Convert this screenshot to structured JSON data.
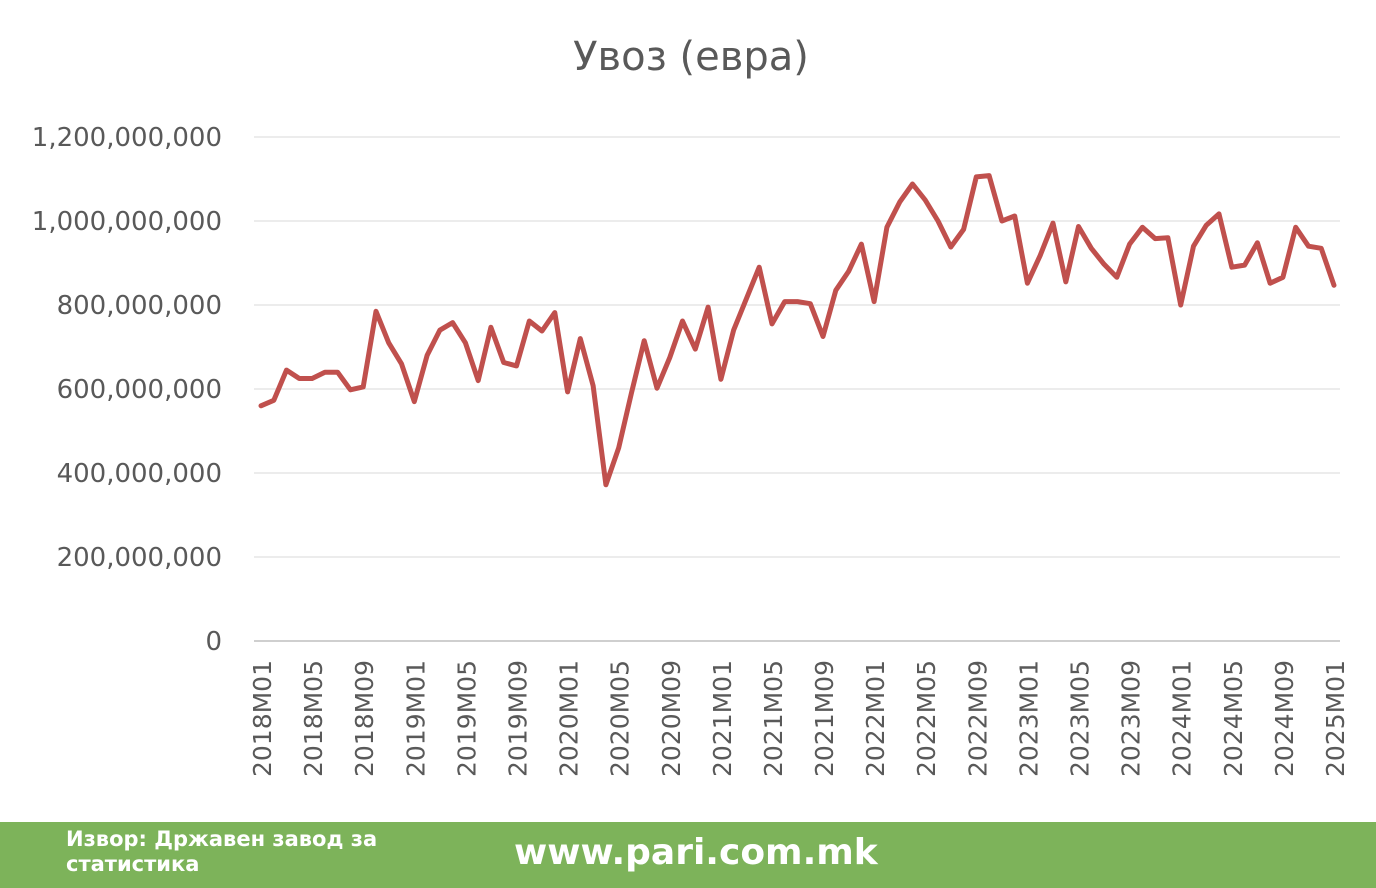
{
  "chart_data": {
    "type": "line",
    "title": "Увоз (евра)",
    "xlabel": "",
    "ylabel": "",
    "ylim": [
      0,
      1200000000
    ],
    "yticks": [
      0,
      200000000,
      400000000,
      600000000,
      800000000,
      1000000000,
      1200000000
    ],
    "ytick_labels": [
      "0",
      "200,000,000",
      "400,000,000",
      "600,000,000",
      "800,000,000",
      "1,000,000,000",
      "1,200,000,000"
    ],
    "xtick_labels": [
      "2018M01",
      "2018M05",
      "2018M09",
      "2019M01",
      "2019M05",
      "2019M09",
      "2020M01",
      "2020M05",
      "2020M09",
      "2021M01",
      "2021M05",
      "2021M09",
      "2022M01",
      "2022M05",
      "2022M09",
      "2023M01",
      "2023M05",
      "2023M09",
      "2024M01",
      "2024M05",
      "2024M09",
      "2025M01"
    ],
    "grid": true,
    "legend": "none",
    "line_color": "#c0504d",
    "categories": [
      "2018M01",
      "2018M02",
      "2018M03",
      "2018M04",
      "2018M05",
      "2018M06",
      "2018M07",
      "2018M08",
      "2018M09",
      "2018M10",
      "2018M11",
      "2018M12",
      "2019M01",
      "2019M02",
      "2019M03",
      "2019M04",
      "2019M05",
      "2019M06",
      "2019M07",
      "2019M08",
      "2019M09",
      "2019M10",
      "2019M11",
      "2019M12",
      "2020M01",
      "2020M02",
      "2020M03",
      "2020M04",
      "2020M05",
      "2020M06",
      "2020M07",
      "2020M08",
      "2020M09",
      "2020M10",
      "2020M11",
      "2020M12",
      "2021M01",
      "2021M02",
      "2021M03",
      "2021M04",
      "2021M05",
      "2021M06",
      "2021M07",
      "2021M08",
      "2021M09",
      "2021M10",
      "2021M11",
      "2021M12",
      "2022M01",
      "2022M02",
      "2022M03",
      "2022M04",
      "2022M05",
      "2022M06",
      "2022M07",
      "2022M08",
      "2022M09",
      "2022M10",
      "2022M11",
      "2022M12",
      "2023M01",
      "2023M02",
      "2023M03",
      "2023M04",
      "2023M05",
      "2023M06",
      "2023M07",
      "2023M08",
      "2023M09",
      "2023M10",
      "2023M11",
      "2023M12",
      "2024M01",
      "2024M02",
      "2024M03",
      "2024M04",
      "2024M05",
      "2024M06",
      "2024M07",
      "2024M08",
      "2024M09",
      "2024M10",
      "2024M11",
      "2024M12",
      "2025M01"
    ],
    "values": [
      560000000,
      573000000,
      645000000,
      625000000,
      625000000,
      640000000,
      640000000,
      598000000,
      605000000,
      785000000,
      710000000,
      660000000,
      570000000,
      680000000,
      740000000,
      758000000,
      710000000,
      620000000,
      747000000,
      663000000,
      655000000,
      762000000,
      738000000,
      782000000,
      593000000,
      720000000,
      608000000,
      372000000,
      460000000,
      590000000,
      715000000,
      602000000,
      675000000,
      762000000,
      695000000,
      795000000,
      623000000,
      740000000,
      815000000,
      890000000,
      755000000,
      808000000,
      808000000,
      803000000,
      725000000,
      835000000,
      880000000,
      945000000,
      808000000,
      985000000,
      1045000000,
      1088000000,
      1050000000,
      1000000000,
      938000000,
      980000000,
      1105000000,
      1108000000,
      1000000000,
      1012000000,
      852000000,
      918000000,
      995000000,
      855000000,
      987000000,
      935000000,
      897000000,
      866000000,
      945000000,
      985000000,
      958000000,
      960000000,
      800000000,
      940000000,
      990000000,
      1017000000,
      890000000,
      895000000,
      948000000,
      852000000,
      866000000,
      985000000,
      940000000,
      935000000,
      847000000
    ]
  },
  "footer": {
    "source": "Извор: Државен завод за статистика",
    "site": "www.pari.com.mk",
    "background": "#7db35a"
  }
}
